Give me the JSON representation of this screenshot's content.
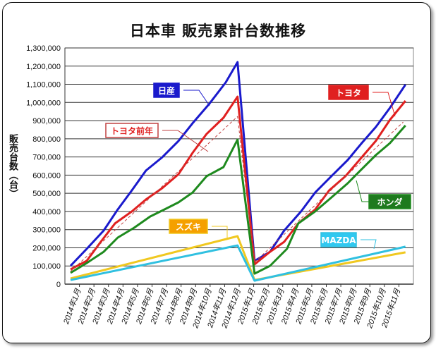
{
  "chart_data": {
    "type": "line",
    "title": "日本車 販売累計台数推移",
    "ylabel": "販売台数（台）",
    "xlabel": "",
    "ylim": [
      0,
      1300000
    ],
    "yticks": [
      "0",
      "100,000",
      "200,000",
      "300,000",
      "400,000",
      "500,000",
      "600,000",
      "700,000",
      "800,000",
      "900,000",
      "1,000,000",
      "1,100,000",
      "1,200,000",
      "1,300,000"
    ],
    "x_unit": "months since start of 2014",
    "xlim": [
      0,
      24
    ],
    "categories": [
      "2014年1月",
      "2014年2月",
      "2014年3月",
      "2014年4月",
      "2014年5月",
      "2014年6月",
      "2014年7月",
      "2014年8月",
      "2014年9月",
      "2014年10月",
      "2014年11月",
      "2014年12月",
      "2015年1月",
      "2015年2月",
      "2015年3月",
      "2015年4月",
      "2015年5月",
      "2015年6月",
      "2015年7月",
      "2015年8月",
      "2015年9月",
      "2015年10月",
      "2015年11月"
    ],
    "grid": true,
    "series": [
      {
        "name": "日産",
        "color": "#1a1acc",
        "label_bg": "#1a1acc",
        "label_fg": "#ffffff",
        "dashed": false,
        "x": [
          0.39,
          1.5,
          2.67,
          3.64,
          4.61,
          5.58,
          6.7,
          7.82,
          8.79,
          9.95,
          11.07,
          11.89,
          13.06,
          14.13,
          15.1,
          16.26,
          17.23,
          18.35,
          19.47,
          20.44,
          21.41,
          22.38,
          23.45
        ],
        "y": [
          101000,
          194000,
          295000,
          411000,
          516000,
          625000,
          698000,
          788000,
          885000,
          993000,
          1110000,
          1222000,
          128000,
          178000,
          295000,
          400000,
          504000,
          594000,
          683000,
          776000,
          865000,
          970000,
          1098000
        ]
      },
      {
        "name": "トヨタ",
        "color": "#e02020",
        "label_bg": "#e02020",
        "label_fg": "#ffffff",
        "dashed": false,
        "x": [
          0.39,
          1.5,
          2.47,
          3.45,
          4.61,
          5.58,
          6.7,
          7.82,
          8.79,
          9.76,
          10.92,
          11.89,
          13.06,
          14.13,
          15.1,
          16.07,
          17.23,
          18.2,
          19.32,
          20.44,
          21.41,
          22.38,
          23.45
        ],
        "y": [
          81000,
          128000,
          233000,
          334000,
          400000,
          466000,
          528000,
          605000,
          722000,
          827000,
          916000,
          1032000,
          109000,
          178000,
          233000,
          334000,
          411000,
          516000,
          594000,
          698000,
          788000,
          904000,
          1009000
        ]
      },
      {
        "name": "トヨタ前年",
        "color": "#c04040",
        "label_bg": "#ffffff",
        "label_fg": "#e02020",
        "dashed": true,
        "x": [
          0.39,
          11.89,
          13.06,
          23.3
        ],
        "y": [
          70000,
          923000,
          120000,
          892000
        ]
      },
      {
        "name": "ホンダ",
        "color": "#1e8a1e",
        "label_bg": "#1e7a1e",
        "label_fg": "#ffffff",
        "dashed": false,
        "x": [
          0.39,
          1.5,
          2.67,
          3.64,
          4.76,
          5.87,
          6.85,
          7.82,
          8.79,
          9.76,
          10.92,
          11.89,
          13.06,
          14.13,
          15.29,
          16.07,
          17.23,
          18.35,
          19.47,
          20.44,
          21.41,
          22.38,
          23.45
        ],
        "y": [
          62000,
          116000,
          178000,
          256000,
          310000,
          372000,
          411000,
          450000,
          504000,
          594000,
          644000,
          795000,
          58000,
          101000,
          194000,
          334000,
          400000,
          477000,
          555000,
          633000,
          710000,
          776000,
          873000
        ]
      },
      {
        "name": "スズキ",
        "color": "#f0c820",
        "label_bg": "#f5a000",
        "label_fg": "#ffffff",
        "dashed": false,
        "x": [
          0.39,
          11.89,
          13.06,
          23.45
        ],
        "y": [
          31000,
          264000,
          23000,
          175000
        ]
      },
      {
        "name": "MAZDA",
        "color": "#30c0e0",
        "label_bg": "#30c8f0",
        "label_fg": "#ffffff",
        "dashed": false,
        "x": [
          0.39,
          11.89,
          13.06,
          23.45
        ],
        "y": [
          23000,
          213000,
          19000,
          206000
        ]
      }
    ]
  }
}
